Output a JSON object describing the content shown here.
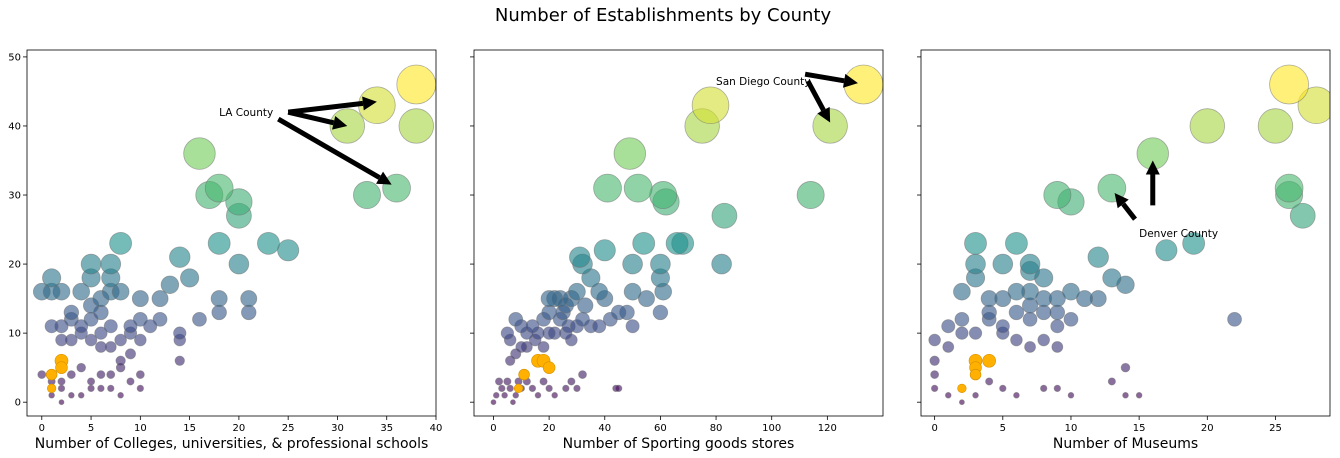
{
  "chart_data": {
    "type": "scatter",
    "title": "Number of Establishments by County",
    "shared_y": true,
    "ylim": [
      -2,
      51
    ],
    "yticks": [
      0,
      10,
      20,
      30,
      40,
      50
    ],
    "colormap": "viridis",
    "colormap_stops": [
      "#440154",
      "#3b528b",
      "#21918c",
      "#5ec962",
      "#fde725"
    ],
    "highlight_color": "#ffb000",
    "arrow_color": "#000000",
    "panels": [
      {
        "xlabel": "Number of Colleges, universities, & professional schools",
        "xlim": [
          -1.5,
          40
        ],
        "xticks": [
          0,
          5,
          10,
          15,
          20,
          25,
          30,
          35,
          40
        ],
        "points": [
          [
            34,
            43
          ],
          [
            38,
            46
          ],
          [
            31,
            40
          ],
          [
            38,
            40
          ],
          [
            36,
            31
          ],
          [
            33,
            30
          ],
          [
            16,
            36
          ],
          [
            20,
            29
          ],
          [
            18,
            31
          ],
          [
            17,
            30
          ],
          [
            20,
            27
          ],
          [
            23,
            23
          ],
          [
            25,
            22
          ],
          [
            20,
            20
          ],
          [
            18,
            23
          ],
          [
            21,
            13
          ],
          [
            21,
            15
          ],
          [
            18,
            15
          ],
          [
            16,
            12
          ],
          [
            18,
            13
          ],
          [
            14,
            10
          ],
          [
            14,
            9
          ],
          [
            14,
            6
          ],
          [
            15,
            18
          ],
          [
            14,
            21
          ],
          [
            13,
            17
          ],
          [
            8,
            23
          ],
          [
            7,
            20
          ],
          [
            7,
            18
          ],
          [
            5,
            20
          ],
          [
            5,
            18
          ],
          [
            4,
            16
          ],
          [
            6,
            15
          ],
          [
            5,
            14
          ],
          [
            7,
            16
          ],
          [
            8,
            16
          ],
          [
            2,
            16
          ],
          [
            1,
            18
          ],
          [
            3,
            13
          ],
          [
            10,
            15
          ],
          [
            10,
            12
          ],
          [
            9,
            11
          ],
          [
            11,
            11
          ],
          [
            12,
            12
          ],
          [
            12,
            15
          ],
          [
            8,
            9
          ],
          [
            9,
            10
          ],
          [
            10,
            9
          ],
          [
            0,
            16
          ],
          [
            1,
            16
          ],
          [
            6,
            13
          ],
          [
            5,
            12
          ],
          [
            4,
            11
          ],
          [
            7,
            11
          ],
          [
            6,
            10
          ],
          [
            4,
            10
          ],
          [
            3,
            12
          ],
          [
            2,
            11
          ],
          [
            1,
            11
          ],
          [
            3,
            9
          ],
          [
            2,
            9
          ],
          [
            5,
            9
          ],
          [
            6,
            8
          ],
          [
            7,
            8
          ],
          [
            8,
            6
          ],
          [
            9,
            7
          ],
          [
            1,
            1
          ],
          [
            2,
            2
          ],
          [
            1,
            3
          ],
          [
            2,
            3
          ],
          [
            0,
            4
          ],
          [
            3,
            4
          ],
          [
            4,
            5
          ],
          [
            5,
            3
          ],
          [
            6,
            4
          ],
          [
            7,
            4
          ],
          [
            8,
            5
          ],
          [
            9,
            3
          ],
          [
            10,
            4
          ],
          [
            10,
            2
          ],
          [
            2,
            0
          ],
          [
            3,
            1
          ],
          [
            4,
            1
          ],
          [
            5,
            2
          ],
          [
            6,
            2
          ],
          [
            7,
            2
          ],
          [
            8,
            1
          ]
        ],
        "highlight_points": [
          [
            2,
            6
          ],
          [
            2,
            5
          ],
          [
            1,
            4
          ],
          [
            1,
            2
          ]
        ],
        "annotation": {
          "text": "LA County",
          "text_x": 18,
          "text_y": 42
        },
        "arrows": [
          {
            "from": [
              25,
              42
            ],
            "to": [
              34,
              43.5
            ]
          },
          {
            "from": [
              25,
              42
            ],
            "to": [
              31,
              40
            ]
          },
          {
            "from": [
              24,
              41
            ],
            "to": [
              35.5,
              31.5
            ]
          }
        ]
      },
      {
        "xlabel": "Number of Sporting goods stores",
        "xlim": [
          -7,
          140
        ],
        "xticks": [
          0,
          20,
          40,
          60,
          80,
          100,
          120
        ],
        "points": [
          [
            78,
            43
          ],
          [
            75,
            40
          ],
          [
            133,
            46
          ],
          [
            121,
            40
          ],
          [
            52,
            31
          ],
          [
            114,
            30
          ],
          [
            49,
            36
          ],
          [
            41,
            31
          ],
          [
            61,
            30
          ],
          [
            62,
            29
          ],
          [
            83,
            27
          ],
          [
            68,
            23
          ],
          [
            66,
            23
          ],
          [
            82,
            20
          ],
          [
            60,
            20
          ],
          [
            50,
            20
          ],
          [
            40,
            22
          ],
          [
            54,
            23
          ],
          [
            60,
            18
          ],
          [
            61,
            16
          ],
          [
            50,
            16
          ],
          [
            60,
            13
          ],
          [
            55,
            15
          ],
          [
            50,
            11
          ],
          [
            48,
            13
          ],
          [
            45,
            13
          ],
          [
            42,
            12
          ],
          [
            40,
            15
          ],
          [
            38,
            16
          ],
          [
            35,
            18
          ],
          [
            32,
            20
          ],
          [
            31,
            21
          ],
          [
            33,
            14
          ],
          [
            35,
            11
          ],
          [
            38,
            11
          ],
          [
            30,
            16
          ],
          [
            28,
            15
          ],
          [
            26,
            14
          ],
          [
            24,
            15
          ],
          [
            22,
            15
          ],
          [
            20,
            13
          ],
          [
            20,
            15
          ],
          [
            25,
            13
          ],
          [
            24,
            12
          ],
          [
            27,
            11
          ],
          [
            30,
            11
          ],
          [
            32,
            12
          ],
          [
            26,
            10
          ],
          [
            28,
            9
          ],
          [
            22,
            10
          ],
          [
            20,
            10
          ],
          [
            8,
            12
          ],
          [
            6,
            9
          ],
          [
            5,
            10
          ],
          [
            10,
            11
          ],
          [
            12,
            10
          ],
          [
            15,
            9
          ],
          [
            18,
            8
          ],
          [
            12,
            8
          ],
          [
            10,
            8
          ],
          [
            8,
            7
          ],
          [
            6,
            6
          ],
          [
            18,
            12
          ],
          [
            16,
            10
          ],
          [
            14,
            11
          ],
          [
            2,
            3
          ],
          [
            3,
            2
          ],
          [
            4,
            1
          ],
          [
            5,
            3
          ],
          [
            6,
            2
          ],
          [
            7,
            0
          ],
          [
            8,
            1
          ],
          [
            9,
            3
          ],
          [
            10,
            2
          ],
          [
            12,
            3
          ],
          [
            14,
            2
          ],
          [
            16,
            1
          ],
          [
            18,
            3
          ],
          [
            20,
            2
          ],
          [
            22,
            1
          ],
          [
            26,
            2
          ],
          [
            28,
            3
          ],
          [
            30,
            2
          ],
          [
            32,
            4
          ],
          [
            44,
            2
          ],
          [
            45,
            2
          ],
          [
            0,
            0
          ],
          [
            1,
            1
          ]
        ],
        "highlight_points": [
          [
            16,
            6
          ],
          [
            18,
            6
          ],
          [
            20,
            5
          ],
          [
            11,
            4
          ],
          [
            9,
            2
          ]
        ],
        "annotation": {
          "text": "San Diego County",
          "text_x": 80,
          "text_y": 46.5
        },
        "arrows": [
          {
            "from": [
              112,
              47.5
            ],
            "to": [
              131,
              46.2
            ]
          },
          {
            "from": [
              113,
              46.5
            ],
            "to": [
              121,
              40.5
            ]
          }
        ]
      },
      {
        "xlabel": "Number of Museums",
        "xlim": [
          -1,
          29
        ],
        "xticks": [
          0,
          5,
          10,
          15,
          20,
          25
        ],
        "points": [
          [
            28,
            43
          ],
          [
            26,
            46
          ],
          [
            20,
            40
          ],
          [
            25,
            40
          ],
          [
            26,
            31
          ],
          [
            26,
            30
          ],
          [
            27,
            27
          ],
          [
            16,
            36
          ],
          [
            13,
            31
          ],
          [
            9,
            30
          ],
          [
            10,
            29
          ],
          [
            19,
            23
          ],
          [
            17,
            22
          ],
          [
            14,
            17
          ],
          [
            13,
            18
          ],
          [
            12,
            21
          ],
          [
            12,
            15
          ],
          [
            11,
            15
          ],
          [
            10,
            16
          ],
          [
            9,
            15
          ],
          [
            10,
            12
          ],
          [
            9,
            13
          ],
          [
            22,
            12
          ],
          [
            6,
            23
          ],
          [
            5,
            20
          ],
          [
            7,
            20
          ],
          [
            7,
            19
          ],
          [
            8,
            18
          ],
          [
            7,
            16
          ],
          [
            6,
            16
          ],
          [
            5,
            15
          ],
          [
            8,
            15
          ],
          [
            8,
            13
          ],
          [
            9,
            11
          ],
          [
            7,
            12
          ],
          [
            6,
            13
          ],
          [
            7,
            14
          ],
          [
            3,
            23
          ],
          [
            3,
            20
          ],
          [
            2,
            16
          ],
          [
            3,
            18
          ],
          [
            4,
            15
          ],
          [
            4,
            13
          ],
          [
            2,
            12
          ],
          [
            1,
            11
          ],
          [
            2,
            10
          ],
          [
            4,
            12
          ],
          [
            5,
            11
          ],
          [
            3,
            10
          ],
          [
            0,
            9
          ],
          [
            1,
            8
          ],
          [
            5,
            10
          ],
          [
            6,
            9
          ],
          [
            8,
            9
          ],
          [
            7,
            8
          ],
          [
            9,
            8
          ],
          [
            14,
            5
          ],
          [
            13,
            3
          ],
          [
            14,
            1
          ],
          [
            15,
            1
          ],
          [
            10,
            1
          ],
          [
            9,
            2
          ],
          [
            8,
            2
          ],
          [
            6,
            1
          ],
          [
            5,
            2
          ],
          [
            4,
            3
          ],
          [
            3,
            1
          ],
          [
            2,
            0
          ],
          [
            1,
            1
          ],
          [
            0,
            2
          ],
          [
            0,
            6
          ],
          [
            0,
            4
          ]
        ],
        "highlight_points": [
          [
            3,
            6
          ],
          [
            3,
            5
          ],
          [
            4,
            6
          ],
          [
            2,
            2
          ],
          [
            3,
            4
          ]
        ],
        "annotation": {
          "text": "Denver County",
          "text_x": 15,
          "text_y": 24.5
        },
        "arrows": [
          {
            "from": [
              16,
              28.5
            ],
            "to": [
              16,
              35
            ]
          },
          {
            "from": [
              14.7,
              26.5
            ],
            "to": [
              13.2,
              30.3
            ]
          }
        ]
      }
    ]
  }
}
